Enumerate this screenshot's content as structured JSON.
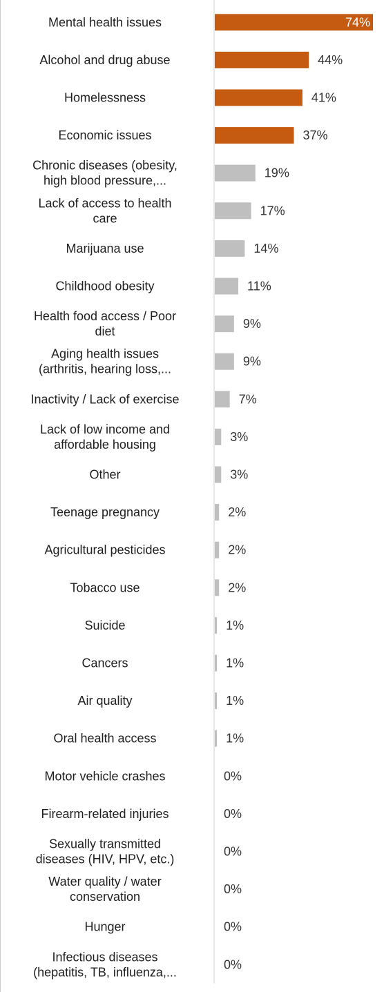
{
  "chart_data": {
    "type": "bar",
    "orientation": "horizontal",
    "title": "",
    "xlabel": "",
    "ylabel": "",
    "xlim": [
      0,
      74
    ],
    "grid": false,
    "legend": "none",
    "highlight_color": "#c55a11",
    "base_color": "#bfbfbf",
    "categories": [
      [
        "Mental health issues"
      ],
      [
        "Alcohol and drug abuse"
      ],
      [
        "Homelessness"
      ],
      [
        "Economic issues"
      ],
      [
        "Chronic diseases (obesity,",
        "high blood pressure,..."
      ],
      [
        "Lack of access to health",
        "care"
      ],
      [
        "Marijuana use"
      ],
      [
        "Childhood obesity"
      ],
      [
        "Health food access / Poor",
        "diet"
      ],
      [
        "Aging health issues",
        "(arthritis, hearing loss,..."
      ],
      [
        "Inactivity / Lack of exercise"
      ],
      [
        "Lack of low income and",
        "affordable housing"
      ],
      [
        "Other"
      ],
      [
        "Teenage pregnancy"
      ],
      [
        "Agricultural pesticides"
      ],
      [
        "Tobacco use"
      ],
      [
        "Suicide"
      ],
      [
        "Cancers"
      ],
      [
        "Air quality"
      ],
      [
        "Oral health access"
      ],
      [
        "Motor vehicle crashes"
      ],
      [
        "Firearm-related injuries"
      ],
      [
        "Sexually transmitted",
        "diseases (HIV, HPV, etc.)"
      ],
      [
        "Water quality / water",
        "conservation"
      ],
      [
        "Hunger"
      ],
      [
        "Infectious diseases",
        "(hepatitis, TB, influenza,..."
      ]
    ],
    "values": [
      74,
      44,
      41,
      37,
      19,
      17,
      14,
      11,
      9,
      9,
      7,
      3,
      3,
      2,
      2,
      2,
      1,
      1,
      1,
      1,
      0,
      0,
      0,
      0,
      0,
      0
    ],
    "data_labels": [
      "74%",
      "44%",
      "41%",
      "37%",
      "19%",
      "17%",
      "14%",
      "11%",
      "9%",
      "9%",
      "7%",
      "3%",
      "3%",
      "2%",
      "2%",
      "2%",
      "1%",
      "1%",
      "1%",
      "1%",
      "0%",
      "0%",
      "0%",
      "0%",
      "0%",
      "0%"
    ],
    "highlighted": [
      true,
      true,
      true,
      true,
      false,
      false,
      false,
      false,
      false,
      false,
      false,
      false,
      false,
      false,
      false,
      false,
      false,
      false,
      false,
      false,
      false,
      false,
      false,
      false,
      false,
      false
    ]
  }
}
